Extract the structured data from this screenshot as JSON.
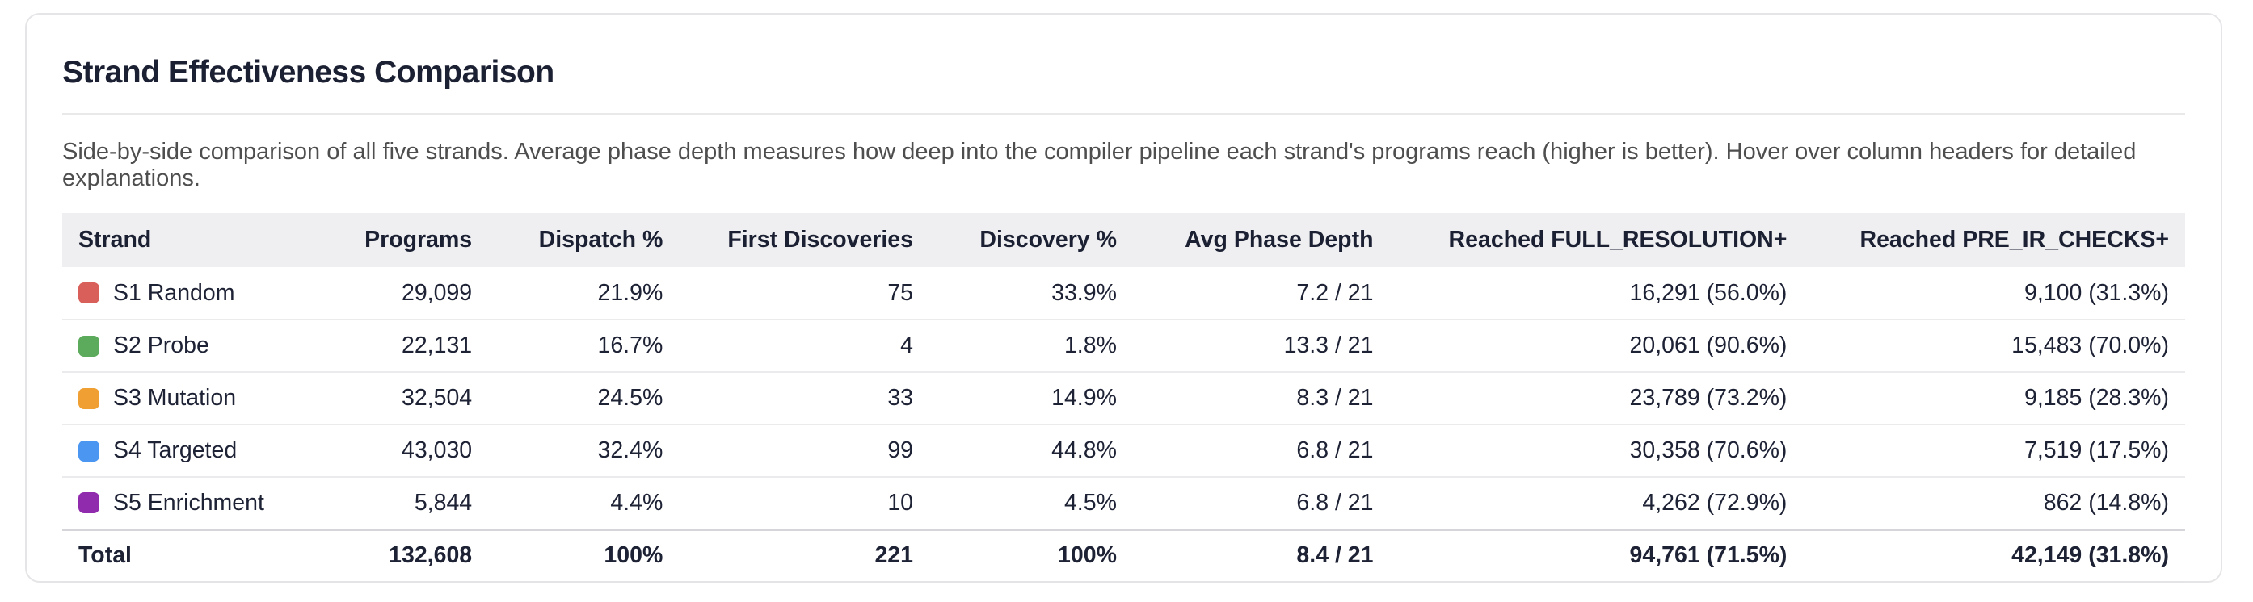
{
  "card": {
    "title": "Strand Effectiveness Comparison",
    "subtitle": "Side-by-side comparison of all five strands. Average phase depth measures how deep into the compiler pipeline each strand's programs reach (higher is better). Hover over column headers for detailed explanations."
  },
  "table": {
    "columns": [
      "Strand",
      "Programs",
      "Dispatch %",
      "First Discoveries",
      "Discovery %",
      "Avg Phase Depth",
      "Reached FULL_RESOLUTION+",
      "Reached PRE_IR_CHECKS+"
    ],
    "rows": [
      {
        "label": "S1 Random",
        "color": "#d95f5a",
        "programs": "29,099",
        "dispatch_pct": "21.9%",
        "first_discoveries": "75",
        "discovery_pct": "33.9%",
        "avg_phase_depth": "7.2 / 21",
        "reached_full_resolution": "16,291 (56.0%)",
        "reached_pre_ir_checks": "9,100 (31.3%)"
      },
      {
        "label": "S2 Probe",
        "color": "#5cab5c",
        "programs": "22,131",
        "dispatch_pct": "16.7%",
        "first_discoveries": "4",
        "discovery_pct": "1.8%",
        "avg_phase_depth": "13.3 / 21",
        "reached_full_resolution": "20,061 (90.6%)",
        "reached_pre_ir_checks": "15,483 (70.0%)"
      },
      {
        "label": "S3 Mutation",
        "color": "#f0a033",
        "programs": "32,504",
        "dispatch_pct": "24.5%",
        "first_discoveries": "33",
        "discovery_pct": "14.9%",
        "avg_phase_depth": "8.3 / 21",
        "reached_full_resolution": "23,789 (73.2%)",
        "reached_pre_ir_checks": "9,185 (28.3%)"
      },
      {
        "label": "S4 Targeted",
        "color": "#4a96f0",
        "programs": "43,030",
        "dispatch_pct": "32.4%",
        "first_discoveries": "99",
        "discovery_pct": "44.8%",
        "avg_phase_depth": "6.8 / 21",
        "reached_full_resolution": "30,358 (70.6%)",
        "reached_pre_ir_checks": "7,519 (17.5%)"
      },
      {
        "label": "S5 Enrichment",
        "color": "#912bad",
        "programs": "5,844",
        "dispatch_pct": "4.4%",
        "first_discoveries": "10",
        "discovery_pct": "4.5%",
        "avg_phase_depth": "6.8 / 21",
        "reached_full_resolution": "4,262 (72.9%)",
        "reached_pre_ir_checks": "862 (14.8%)"
      }
    ],
    "total": {
      "label": "Total",
      "programs": "132,608",
      "dispatch_pct": "100%",
      "first_discoveries": "221",
      "discovery_pct": "100%",
      "avg_phase_depth": "8.4 / 21",
      "reached_full_resolution": "94,761 (71.5%)",
      "reached_pre_ir_checks": "42,149 (31.8%)"
    }
  }
}
